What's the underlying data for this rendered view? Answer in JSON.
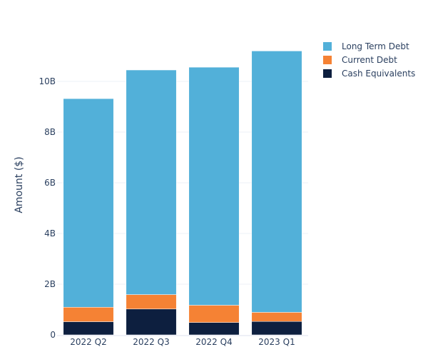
{
  "chart_data": {
    "type": "bar",
    "stacked": true,
    "title": "",
    "xlabel": "",
    "ylabel": "Amount ($)",
    "ylim": [
      0,
      11.75
    ],
    "y_unit": "B",
    "grid": true,
    "legend_position": "top-right",
    "categories": [
      "2022 Q2",
      "2022 Q3",
      "2022 Q4",
      "2023 Q1"
    ],
    "y_ticks": [
      {
        "value": 0,
        "label": "0"
      },
      {
        "value": 2,
        "label": "2B"
      },
      {
        "value": 4,
        "label": "4B"
      },
      {
        "value": 6,
        "label": "6B"
      },
      {
        "value": 8,
        "label": "8B"
      },
      {
        "value": 10,
        "label": "10B"
      }
    ],
    "series": [
      {
        "name": "Cash Equivalents",
        "color": "#0d1f3f",
        "values": [
          0.52,
          1.02,
          0.49,
          0.53
        ]
      },
      {
        "name": "Current Debt",
        "color": "#f58234",
        "values": [
          0.57,
          0.57,
          0.68,
          0.36
        ]
      },
      {
        "name": "Long Term Debt",
        "color": "#52b0d9",
        "values": [
          8.23,
          8.86,
          9.39,
          10.31
        ]
      }
    ],
    "legend_order": [
      "Long Term Debt",
      "Current Debt",
      "Cash Equivalents"
    ]
  }
}
